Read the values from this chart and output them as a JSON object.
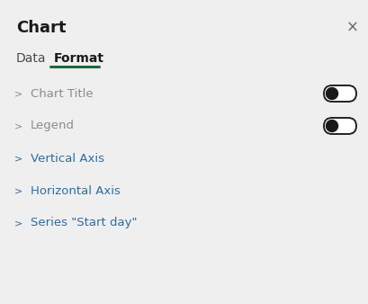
{
  "background_color": "#efefef",
  "title_text": "Chart",
  "title_fontsize": 13,
  "title_color": "#1a1a1a",
  "close_x": "×",
  "tab_data": "Data",
  "tab_format": "Format",
  "tab_underline_color": "#1a6b3c",
  "tab_active_color": "#1a1a1a",
  "tab_inactive_color": "#4a4a4a",
  "menu_items": [
    {
      "label": "Chart Title",
      "color": "#8c8c8c",
      "chevron_color": "#8c8c8c",
      "has_toggle": true
    },
    {
      "label": "Legend",
      "color": "#8c8c8c",
      "chevron_color": "#8c8c8c",
      "has_toggle": true
    },
    {
      "label": "Vertical Axis",
      "color": "#2e6da4",
      "chevron_color": "#2e6da4",
      "has_toggle": false
    },
    {
      "label": "Horizontal Axis",
      "color": "#2e6da4",
      "chevron_color": "#2e6da4",
      "has_toggle": false
    },
    {
      "label": "Series \"Start day\"",
      "color": "#2e6da4",
      "chevron_color": "#2e6da4",
      "has_toggle": false
    }
  ],
  "toggle_bg_color": "#ffffff",
  "toggle_border_color": "#222222",
  "toggle_knob_color": "#1a1a1a",
  "figsize": [
    4.09,
    3.38
  ],
  "dpi": 100
}
